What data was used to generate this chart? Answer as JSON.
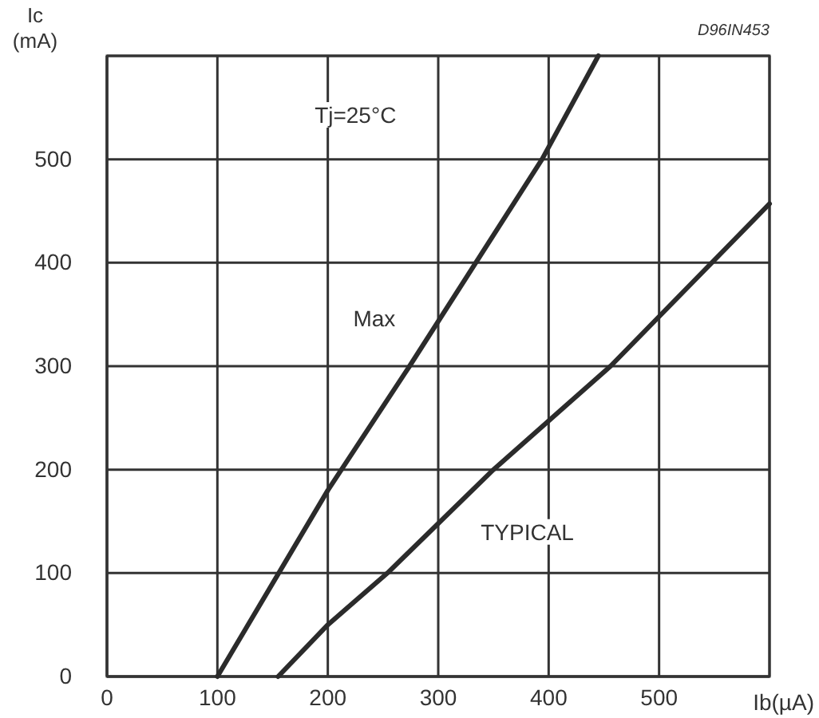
{
  "chart_data": {
    "type": "line",
    "xlabel": "Ib(µA)",
    "ylabel": "Ic (mA)",
    "annotations": [
      "Tj=25°C",
      "D96IN453"
    ],
    "series": [
      {
        "name": "Max",
        "color": "#2b2b2b",
        "x": [
          100,
          200,
          274,
          394,
          445
        ],
        "values": [
          0,
          180,
          300,
          500,
          600
        ]
      },
      {
        "name": "TYPICAL",
        "color": "#2b2b2b",
        "x": [
          155,
          200,
          254,
          350,
          456,
          600
        ],
        "values": [
          0,
          50,
          100,
          200,
          300,
          457
        ]
      }
    ],
    "xlim": [
      0,
      600
    ],
    "ylim": [
      0,
      600
    ],
    "xticks": [
      0,
      100,
      200,
      300,
      400,
      500,
      {
        "value": 600,
        "label": null
      }
    ],
    "yticks": [
      0,
      100,
      200,
      300,
      400,
      500,
      {
        "value": 600,
        "label": null
      }
    ],
    "grid": true,
    "marker": "none",
    "line_style": "solid"
  }
}
